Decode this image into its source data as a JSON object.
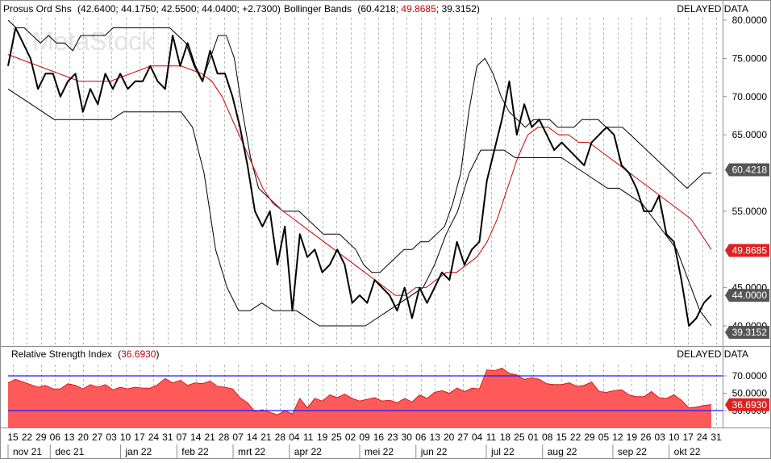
{
  "header": {
    "ticker_label": "Prosus Ord Shs",
    "ohlc": "(42.6400; 44.1750; 42.5500; 44.0400; +2.7300)",
    "indicator_name": "Bollinger Bands",
    "bb_open": "(",
    "bb_upper": "60.4218",
    "bb_mid": "49.8685",
    "bb_lower": "39.3152",
    "bb_close": ")",
    "delayed": "DELAYED DATA",
    "watermark": "MetaStock"
  },
  "rsi_header": {
    "label": "Relative Strength Index",
    "value_open": "(",
    "value": "36.6930",
    "value_close": ")",
    "delayed": "DELAYED DATA"
  },
  "colors": {
    "price": "#000000",
    "bands": "#000000",
    "mid": "#cc0000",
    "rsi_fill": "#ff5a5a",
    "rsi_lines": "#1a1aff",
    "grid": "#b8b8b8",
    "badge_dark": "#555555",
    "badge_red": "#dd2222"
  },
  "chart_data": [
    {
      "type": "line",
      "title": "Prosus Ord Shs",
      "ylim": [
        38.5,
        80.5
      ],
      "y_ticks": [
        "80.0000",
        "75.0000",
        "70.0000",
        "65.0000",
        "55.0000",
        "45.0000",
        "40.0000"
      ],
      "series": [
        {
          "name": "Prosus Ord Shs",
          "values": [
            74,
            79,
            77,
            75,
            71,
            73,
            73,
            70,
            72,
            73,
            68,
            71,
            69,
            73,
            71,
            73,
            71,
            72,
            72,
            74,
            72,
            71,
            78,
            74,
            77,
            74,
            72,
            76,
            73,
            73,
            70,
            66,
            61,
            55,
            53,
            55,
            48,
            53,
            42,
            52,
            49,
            50,
            47,
            48,
            50,
            48,
            43,
            44,
            43,
            46,
            45,
            44,
            42,
            45,
            41,
            45,
            43,
            45,
            47,
            46,
            51,
            48,
            50,
            51,
            59,
            63,
            67,
            72,
            65,
            69,
            66,
            67,
            65,
            63,
            64,
            63,
            62,
            61,
            64,
            65,
            66,
            65,
            61,
            60,
            58,
            55,
            55,
            57,
            52,
            51,
            46,
            40,
            41,
            43,
            44
          ]
        },
        {
          "name": "Upper Band",
          "values": [
            80,
            79,
            79,
            78,
            77,
            78,
            77,
            77,
            76,
            78,
            78,
            78,
            78,
            79,
            79,
            79,
            79,
            79,
            79,
            79,
            79,
            78,
            77,
            74,
            72,
            75,
            78,
            78,
            75,
            68,
            62,
            58,
            57,
            56,
            55,
            55,
            55,
            54,
            53,
            52,
            52,
            52,
            51,
            50,
            48,
            47,
            47,
            48,
            49,
            50,
            50,
            51,
            51,
            52,
            53,
            56,
            60,
            68,
            74,
            75,
            73,
            70,
            68,
            67,
            66,
            67,
            67,
            67,
            66,
            66,
            66,
            67,
            67,
            67,
            66,
            66,
            66,
            65,
            64,
            63,
            62,
            61,
            60,
            59,
            58,
            59,
            60,
            60
          ]
        },
        {
          "name": "Middle Band",
          "values": [
            75.5,
            75,
            74.5,
            74,
            73.5,
            73,
            72.5,
            72,
            72,
            72,
            72,
            72.5,
            73,
            73.5,
            74,
            74,
            74,
            74,
            73.5,
            73,
            72,
            70,
            67,
            64,
            61,
            58,
            56,
            55,
            54,
            53,
            52,
            51,
            50,
            49,
            48,
            47,
            46,
            45,
            44,
            44,
            45,
            45,
            46,
            47,
            47,
            48,
            49,
            51,
            54,
            58,
            62,
            65,
            66,
            66,
            65,
            65,
            64,
            64,
            63,
            62,
            61,
            60,
            59,
            58,
            57,
            56,
            55,
            54,
            52,
            50
          ]
        },
        {
          "name": "Lower Band",
          "values": [
            71,
            70,
            69,
            68,
            67,
            67,
            67,
            67,
            67,
            67,
            68,
            68,
            68,
            68,
            68,
            68,
            66,
            60,
            50,
            45,
            42,
            42,
            43,
            42,
            42,
            42,
            41,
            40,
            40,
            40,
            40,
            40,
            41,
            42,
            43,
            44,
            45,
            48,
            52,
            55,
            60,
            63,
            63,
            63,
            62,
            62,
            62,
            62,
            62,
            61,
            60,
            59,
            58,
            58,
            57,
            56,
            54,
            52,
            50,
            46,
            42,
            40
          ]
        }
      ]
    },
    {
      "type": "area",
      "title": "Relative Strength Index",
      "ylim": [
        20,
        85
      ],
      "y_ticks": [
        "70.0000",
        "50.0000",
        "30.0000"
      ],
      "reference_lines": [
        70,
        30
      ],
      "series": [
        {
          "name": "Relative Strength Index",
          "values": [
            62,
            66,
            63,
            60,
            57,
            59,
            55,
            55,
            61,
            59,
            55,
            60,
            57,
            60,
            54,
            57,
            55,
            57,
            56,
            56,
            60,
            67,
            62,
            65,
            59,
            62,
            61,
            64,
            58,
            57,
            55,
            45,
            39,
            29,
            31,
            28,
            25,
            30,
            26,
            44,
            33,
            44,
            41,
            48,
            45,
            49,
            44,
            41,
            43,
            45,
            41,
            42,
            39,
            44,
            40,
            48,
            44,
            51,
            53,
            50,
            56,
            52,
            56,
            55,
            77,
            76,
            79,
            73,
            71,
            66,
            68,
            66,
            61,
            60,
            60,
            62,
            58,
            59,
            63,
            52,
            51,
            53,
            54,
            48,
            46,
            46,
            52,
            45,
            44,
            48,
            42,
            33,
            34,
            36,
            37
          ]
        }
      ]
    }
  ],
  "xaxis": {
    "days": [
      "15",
      "22",
      "29",
      "06",
      "13",
      "20",
      "27",
      "03",
      "10",
      "17",
      "24",
      "31",
      "07",
      "14",
      "21",
      "28",
      "07",
      "14",
      "21",
      "28",
      "04",
      "11",
      "19",
      "25",
      "02",
      "09",
      "16",
      "23",
      "30",
      "06",
      "13",
      "20",
      "27",
      "04",
      "11",
      "18",
      "25",
      "01",
      "08",
      "15",
      "22",
      "29",
      "05",
      "12",
      "19",
      "26",
      "03",
      "10",
      "17",
      "24",
      "31"
    ],
    "months": [
      "nov 21",
      "dec 21",
      "jan 22",
      "feb 22",
      "mrt 22",
      "apr 22",
      "mei 22",
      "jun 22",
      "jul 22",
      "aug 22",
      "sep 22",
      "okt 22"
    ]
  }
}
